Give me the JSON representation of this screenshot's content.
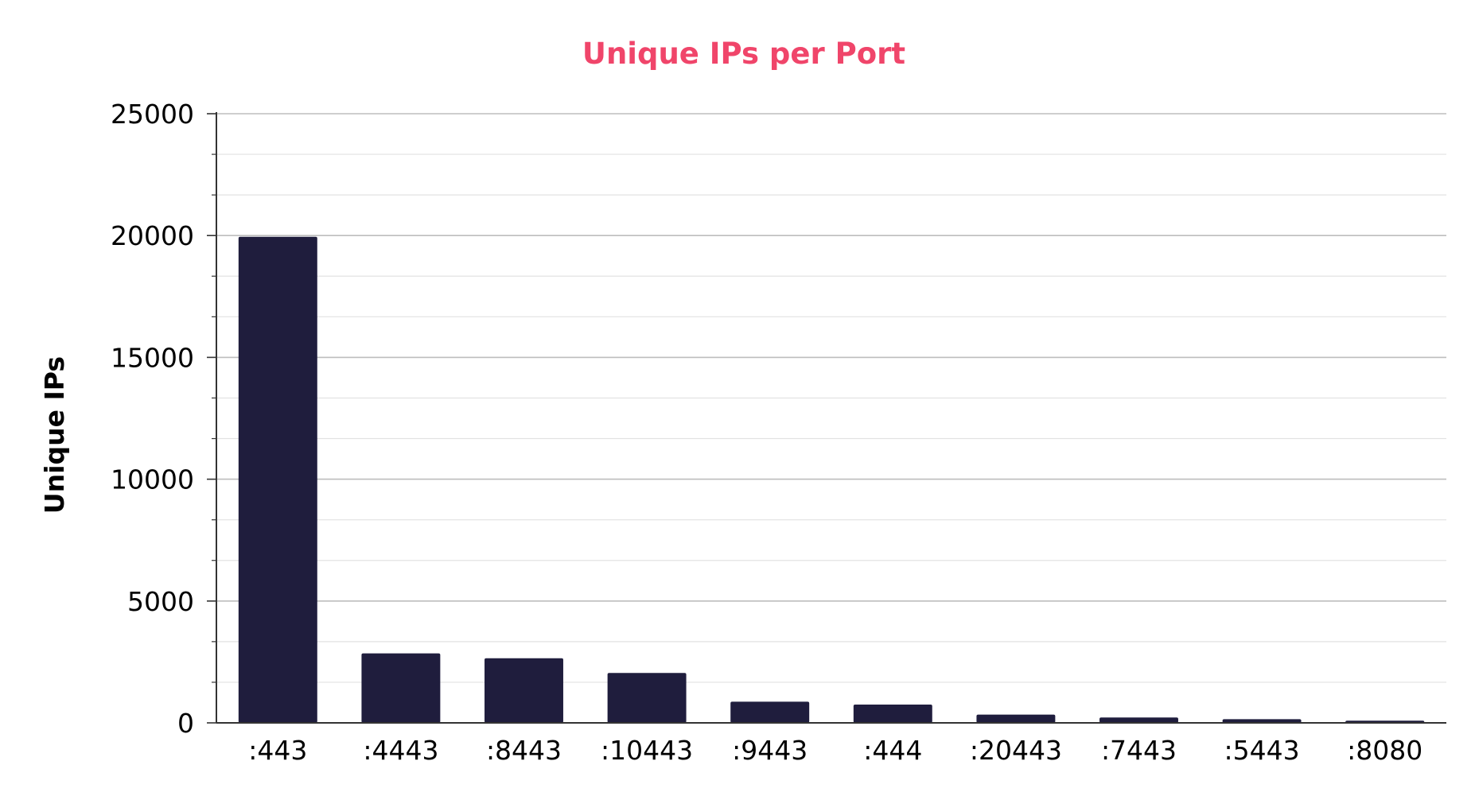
{
  "chart_data": {
    "type": "bar",
    "title": "Unique IPs per Port",
    "xlabel": "",
    "ylabel": "Unique IPs",
    "categories": [
      ":443",
      ":4443",
      ":8443",
      ":10443",
      ":9443",
      ":444",
      ":20443",
      ":7443",
      ":5443",
      ":8080"
    ],
    "values": [
      19950,
      2850,
      2650,
      2050,
      870,
      750,
      340,
      220,
      150,
      90
    ],
    "ylim": [
      0,
      25000
    ],
    "yticks": [
      0,
      5000,
      10000,
      15000,
      20000,
      25000
    ],
    "ytick_labels": [
      "0",
      "5000",
      "10000",
      "15000",
      "20000",
      "25000"
    ],
    "minor_grid_step": 1666.67,
    "grid": true,
    "legend": "none"
  },
  "colors": {
    "title": "#f0456a",
    "bar": "#1f1d3d",
    "axis": "#333333",
    "major_grid": "#bdbdbd",
    "minor_grid": "#e2e2e2"
  }
}
